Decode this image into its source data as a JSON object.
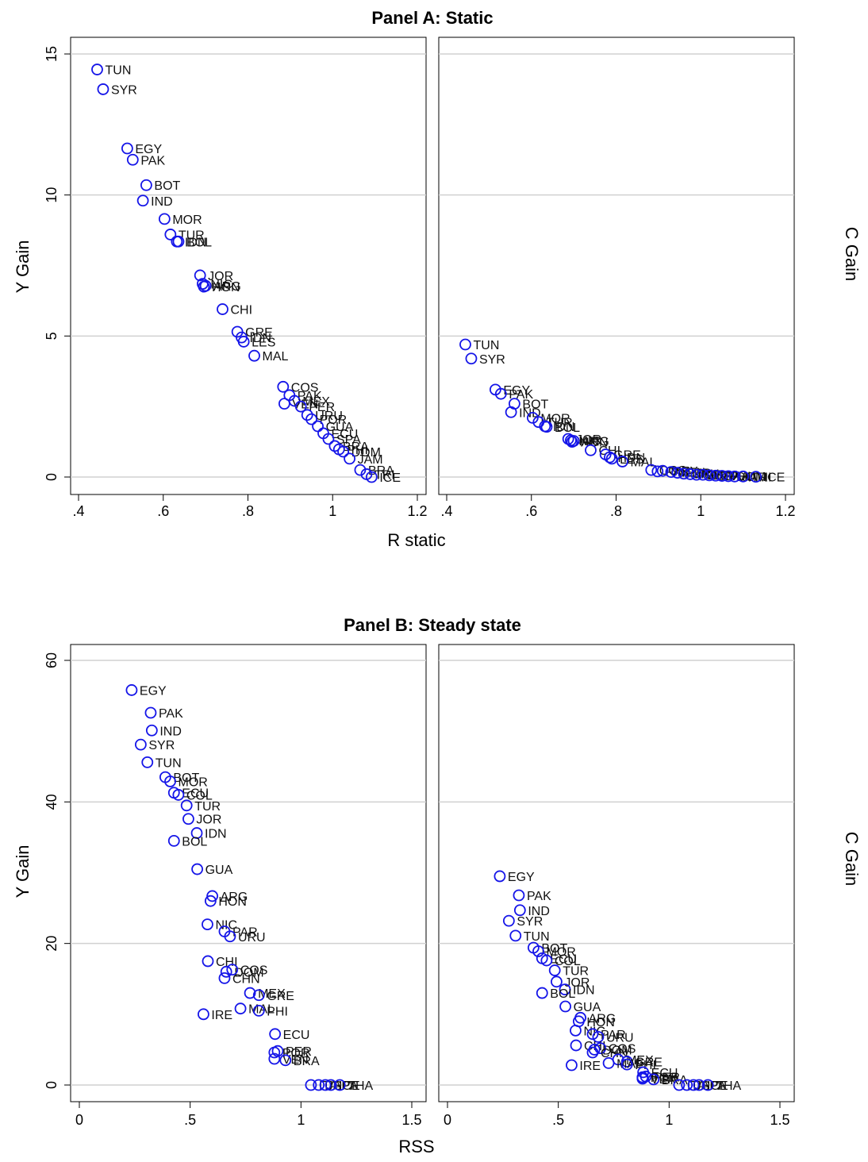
{
  "chart_data": [
    {
      "type": "scatter",
      "title": "Panel A: Static",
      "xlabel": "R static",
      "ylabel_left": "Y Gain",
      "ylabel_right": "C Gain",
      "xlim": [
        0.4,
        1.2
      ],
      "ylim": [
        0,
        15
      ],
      "xticks": [
        0.4,
        0.6,
        0.8,
        1.0,
        1.2
      ],
      "xtick_labels": [
        ".4",
        ".6",
        ".8",
        "1",
        "1.2"
      ],
      "yticks": [
        0,
        5,
        10,
        15
      ],
      "ytick_labels": [
        "0",
        "5",
        "10",
        "15"
      ],
      "grid": "horizontal",
      "marker_color": "#1515e8",
      "series": [
        {
          "points": [
            {
              "label": "TUN",
              "x": 0.444,
              "y": 14.45
            },
            {
              "label": "SYR",
              "x": 0.458,
              "y": 13.75
            },
            {
              "label": "EGY",
              "x": 0.515,
              "y": 11.65
            },
            {
              "label": "PAK",
              "x": 0.528,
              "y": 11.25
            },
            {
              "label": "BOT",
              "x": 0.56,
              "y": 10.35
            },
            {
              "label": "IND",
              "x": 0.552,
              "y": 9.8
            },
            {
              "label": "MOR",
              "x": 0.603,
              "y": 9.15
            },
            {
              "label": "TUR",
              "x": 0.617,
              "y": 8.6
            },
            {
              "label": "IDN",
              "x": 0.632,
              "y": 8.35
            },
            {
              "label": "BOL",
              "x": 0.636,
              "y": 8.35
            },
            {
              "label": "JOR",
              "x": 0.687,
              "y": 7.15
            },
            {
              "label": "NIC",
              "x": 0.693,
              "y": 6.85
            },
            {
              "label": "HON",
              "x": 0.696,
              "y": 6.75
            },
            {
              "label": "ARG",
              "x": 0.7,
              "y": 6.78
            },
            {
              "label": "CHI",
              "x": 0.74,
              "y": 5.95
            },
            {
              "label": "GRE",
              "x": 0.775,
              "y": 5.15
            },
            {
              "label": "IDN",
              "x": 0.785,
              "y": 4.95
            },
            {
              "label": "LES",
              "x": 0.79,
              "y": 4.8
            },
            {
              "label": "MAL",
              "x": 0.815,
              "y": 4.3
            },
            {
              "label": "COS",
              "x": 0.883,
              "y": 3.2
            },
            {
              "label": "PAK",
              "x": 0.898,
              "y": 2.9
            },
            {
              "label": "MEX",
              "x": 0.91,
              "y": 2.7
            },
            {
              "label": "VEN",
              "x": 0.886,
              "y": 2.6
            },
            {
              "label": "PER",
              "x": 0.925,
              "y": 2.5
            },
            {
              "label": "URU",
              "x": 0.94,
              "y": 2.2
            },
            {
              "label": "POR",
              "x": 0.95,
              "y": 2.05
            },
            {
              "label": "GUA",
              "x": 0.965,
              "y": 1.8
            },
            {
              "label": "ECU",
              "x": 0.978,
              "y": 1.55
            },
            {
              "label": "SPA",
              "x": 0.99,
              "y": 1.35
            },
            {
              "label": "BRA",
              "x": 1.005,
              "y": 1.1
            },
            {
              "label": "PHI",
              "x": 1.015,
              "y": 0.98
            },
            {
              "label": "DOM",
              "x": 1.025,
              "y": 0.9
            },
            {
              "label": "JAM",
              "x": 1.04,
              "y": 0.65
            },
            {
              "label": "BRA",
              "x": 1.065,
              "y": 0.25
            },
            {
              "label": "TRI",
              "x": 1.08,
              "y": 0.1
            },
            {
              "label": "ICE",
              "x": 1.092,
              "y": 0.0
            }
          ]
        },
        {
          "points": [
            {
              "label": "TUN",
              "x": 0.444,
              "y": 4.7
            },
            {
              "label": "SYR",
              "x": 0.458,
              "y": 4.2
            },
            {
              "label": "EGY",
              "x": 0.515,
              "y": 3.1
            },
            {
              "label": "PAK",
              "x": 0.528,
              "y": 2.95
            },
            {
              "label": "BOT",
              "x": 0.56,
              "y": 2.6
            },
            {
              "label": "IND",
              "x": 0.552,
              "y": 2.3
            },
            {
              "label": "MOR",
              "x": 0.603,
              "y": 2.1
            },
            {
              "label": "TUR",
              "x": 0.617,
              "y": 1.95
            },
            {
              "label": "IDN",
              "x": 0.632,
              "y": 1.8
            },
            {
              "label": "BOL",
              "x": 0.636,
              "y": 1.78
            },
            {
              "label": "JOR",
              "x": 0.687,
              "y": 1.35
            },
            {
              "label": "NIC",
              "x": 0.693,
              "y": 1.3
            },
            {
              "label": "HON",
              "x": 0.696,
              "y": 1.25
            },
            {
              "label": "ARG",
              "x": 0.7,
              "y": 1.28
            },
            {
              "label": "CHI",
              "x": 0.74,
              "y": 0.95
            },
            {
              "label": "GRE",
              "x": 0.775,
              "y": 0.8
            },
            {
              "label": "HDN",
              "x": 0.785,
              "y": 0.7
            },
            {
              "label": "LES",
              "x": 0.79,
              "y": 0.65
            },
            {
              "label": "MAL",
              "x": 0.815,
              "y": 0.55
            },
            {
              "label": "COS",
              "x": 0.883,
              "y": 0.25
            },
            {
              "label": "PAK",
              "x": 0.898,
              "y": 0.2
            },
            {
              "label": "MEX",
              "x": 0.91,
              "y": 0.22
            },
            {
              "label": "VEN",
              "x": 0.93,
              "y": 0.18
            },
            {
              "label": "PER",
              "x": 0.945,
              "y": 0.15
            },
            {
              "label": "URU",
              "x": 0.96,
              "y": 0.12
            },
            {
              "label": "POR",
              "x": 0.975,
              "y": 0.1
            },
            {
              "label": "GUA",
              "x": 0.99,
              "y": 0.08
            },
            {
              "label": "ECU",
              "x": 1.005,
              "y": 0.08
            },
            {
              "label": "SPA",
              "x": 1.02,
              "y": 0.06
            },
            {
              "label": "BRA",
              "x": 1.035,
              "y": 0.05
            },
            {
              "label": "PHI",
              "x": 1.05,
              "y": 0.04
            },
            {
              "label": "DOM",
              "x": 1.065,
              "y": 0.03
            },
            {
              "label": "JAM",
              "x": 1.08,
              "y": 0.02
            },
            {
              "label": "TRI",
              "x": 1.1,
              "y": 0.02
            },
            {
              "label": "ICE",
              "x": 1.13,
              "y": 0.01
            }
          ]
        }
      ]
    },
    {
      "type": "scatter",
      "title": "Panel B: Steady state",
      "xlabel": "RSS",
      "ylabel_left": "Y Gain",
      "ylabel_right": "C Gain",
      "xlim": [
        -0.05,
        1.5
      ],
      "ylim": [
        0,
        60
      ],
      "xticks": [
        0,
        0.5,
        1.0,
        1.5
      ],
      "xtick_labels": [
        "0",
        ".5",
        "1",
        "1.5"
      ],
      "yticks": [
        0,
        20,
        40,
        60
      ],
      "ytick_labels": [
        "0",
        "20",
        "40",
        "60"
      ],
      "grid": "horizontal",
      "marker_color": "#1515e8",
      "series": [
        {
          "points": [
            {
              "label": "EGY",
              "x": 0.236,
              "y": 55.8
            },
            {
              "label": "PAK",
              "x": 0.322,
              "y": 52.6
            },
            {
              "label": "IND",
              "x": 0.327,
              "y": 50.1
            },
            {
              "label": "SYR",
              "x": 0.277,
              "y": 48.1
            },
            {
              "label": "TUN",
              "x": 0.307,
              "y": 45.6
            },
            {
              "label": "BOT",
              "x": 0.388,
              "y": 43.5
            },
            {
              "label": "MOR",
              "x": 0.41,
              "y": 42.9
            },
            {
              "label": "ECU",
              "x": 0.427,
              "y": 41.3
            },
            {
              "label": "COL",
              "x": 0.447,
              "y": 41.0
            },
            {
              "label": "TUR",
              "x": 0.484,
              "y": 39.5
            },
            {
              "label": "JOR",
              "x": 0.492,
              "y": 37.6
            },
            {
              "label": "IDN",
              "x": 0.53,
              "y": 35.6
            },
            {
              "label": "BOL",
              "x": 0.427,
              "y": 34.5
            },
            {
              "label": "GUA",
              "x": 0.532,
              "y": 30.5
            },
            {
              "label": "ARG",
              "x": 0.6,
              "y": 26.7
            },
            {
              "label": "HON",
              "x": 0.592,
              "y": 26.0
            },
            {
              "label": "NIC",
              "x": 0.578,
              "y": 22.7
            },
            {
              "label": "PAR",
              "x": 0.655,
              "y": 21.7
            },
            {
              "label": "URU",
              "x": 0.68,
              "y": 21.0
            },
            {
              "label": "CHI",
              "x": 0.58,
              "y": 17.5
            },
            {
              "label": "DOM",
              "x": 0.663,
              "y": 16.0
            },
            {
              "label": "COS",
              "x": 0.69,
              "y": 16.3
            },
            {
              "label": "CHN",
              "x": 0.655,
              "y": 15.1
            },
            {
              "label": "MEX",
              "x": 0.77,
              "y": 13.0
            },
            {
              "label": "GRE",
              "x": 0.81,
              "y": 12.7
            },
            {
              "label": "MAL",
              "x": 0.727,
              "y": 10.8
            },
            {
              "label": "PHI",
              "x": 0.81,
              "y": 10.5
            },
            {
              "label": "IRE",
              "x": 0.56,
              "y": 10.0
            },
            {
              "label": "ECU",
              "x": 0.883,
              "y": 7.2
            },
            {
              "label": "PER",
              "x": 0.895,
              "y": 4.8
            },
            {
              "label": "POR",
              "x": 0.88,
              "y": 4.6
            },
            {
              "label": "VEN",
              "x": 0.88,
              "y": 3.7
            },
            {
              "label": "BRA",
              "x": 0.93,
              "y": 3.5
            },
            {
              "label": "ITA",
              "x": 1.045,
              "y": 0.0
            },
            {
              "label": "JAP",
              "x": 1.08,
              "y": 0.0
            },
            {
              "label": "SPA",
              "x": 1.11,
              "y": 0.0
            },
            {
              "label": "ICE",
              "x": 1.135,
              "y": 0.0
            },
            {
              "label": "THA",
              "x": 1.175,
              "y": 0.0
            }
          ]
        },
        {
          "points": [
            {
              "label": "EGY",
              "x": 0.236,
              "y": 29.5
            },
            {
              "label": "PAK",
              "x": 0.322,
              "y": 26.8
            },
            {
              "label": "IND",
              "x": 0.327,
              "y": 24.7
            },
            {
              "label": "SYR",
              "x": 0.277,
              "y": 23.2
            },
            {
              "label": "TUN",
              "x": 0.307,
              "y": 21.1
            },
            {
              "label": "BOT",
              "x": 0.388,
              "y": 19.4
            },
            {
              "label": "MOR",
              "x": 0.41,
              "y": 18.9
            },
            {
              "label": "ECU",
              "x": 0.427,
              "y": 17.9
            },
            {
              "label": "COL",
              "x": 0.447,
              "y": 17.6
            },
            {
              "label": "TUR",
              "x": 0.484,
              "y": 16.2
            },
            {
              "label": "JOR",
              "x": 0.492,
              "y": 14.6
            },
            {
              "label": "IDN",
              "x": 0.53,
              "y": 13.5
            },
            {
              "label": "BOL",
              "x": 0.427,
              "y": 13.0
            },
            {
              "label": "GUA",
              "x": 0.532,
              "y": 11.1
            },
            {
              "label": "ARG",
              "x": 0.6,
              "y": 9.5
            },
            {
              "label": "HON",
              "x": 0.592,
              "y": 9.0
            },
            {
              "label": "NIC",
              "x": 0.578,
              "y": 7.7
            },
            {
              "label": "PAR",
              "x": 0.655,
              "y": 7.2
            },
            {
              "label": "URU",
              "x": 0.68,
              "y": 6.8
            },
            {
              "label": "CHI",
              "x": 0.58,
              "y": 5.6
            },
            {
              "label": "DOM",
              "x": 0.663,
              "y": 5.0
            },
            {
              "label": "COS",
              "x": 0.69,
              "y": 5.2
            },
            {
              "label": "CHN",
              "x": 0.655,
              "y": 4.6
            },
            {
              "label": "MEX",
              "x": 0.77,
              "y": 3.6
            },
            {
              "label": "GRE",
              "x": 0.81,
              "y": 3.3
            },
            {
              "label": "MAL",
              "x": 0.727,
              "y": 3.1
            },
            {
              "label": "PHI",
              "x": 0.81,
              "y": 2.9
            },
            {
              "label": "IRE",
              "x": 0.56,
              "y": 2.8
            },
            {
              "label": "ECU",
              "x": 0.883,
              "y": 1.8
            },
            {
              "label": "PER",
              "x": 0.895,
              "y": 1.2
            },
            {
              "label": "POR",
              "x": 0.88,
              "y": 1.1
            },
            {
              "label": "VEN",
              "x": 0.88,
              "y": 0.9
            },
            {
              "label": "BRA",
              "x": 0.93,
              "y": 0.8
            },
            {
              "label": "ITA",
              "x": 1.045,
              "y": 0.0
            },
            {
              "label": "JAP",
              "x": 1.08,
              "y": 0.0
            },
            {
              "label": "SPA",
              "x": 1.11,
              "y": 0.0
            },
            {
              "label": "ICE",
              "x": 1.135,
              "y": 0.0
            },
            {
              "label": "THA",
              "x": 1.175,
              "y": 0.0
            }
          ]
        }
      ]
    }
  ]
}
